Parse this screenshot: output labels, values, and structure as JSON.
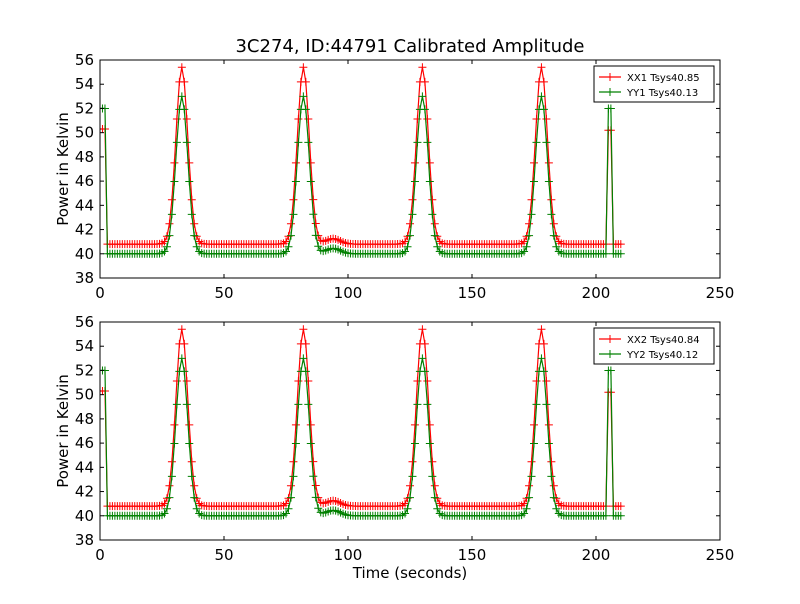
{
  "figure": {
    "title": "3C274, ID:44791 Calibrated Amplitude",
    "colors": {
      "xx": "#ff0000",
      "yy": "#008000",
      "axis": "#000000",
      "background": "#ffffff"
    }
  },
  "chart_data": [
    {
      "type": "line",
      "title": "3C274, ID:44791 Calibrated Amplitude",
      "xlabel": "",
      "ylabel": "Power in Kelvin",
      "xlim": [
        0,
        250
      ],
      "ylim": [
        38,
        56
      ],
      "xticks": [
        0,
        50,
        100,
        150,
        200,
        250
      ],
      "yticks": [
        38,
        40,
        42,
        44,
        46,
        48,
        50,
        52,
        54,
        56
      ],
      "grid": false,
      "legend_position": "top-right",
      "series": [
        {
          "name": "XX1 Tsys40.85",
          "color": "#ff0000",
          "marker": "+",
          "baseline": 40.8,
          "peaks": [
            33,
            82,
            130,
            178
          ],
          "peak_value": 55.4,
          "calibration": {
            "start": 0,
            "value": 50.3
          },
          "calibration_end": {
            "at": 205.5,
            "value": 50.2
          },
          "range": [
            0,
            210
          ],
          "final_value": 40.8
        },
        {
          "name": "YY1 Tsys40.13",
          "color": "#008000",
          "marker": "+",
          "baseline": 40.0,
          "peaks": [
            33,
            82,
            130,
            178
          ],
          "peak_value": 53.0,
          "calibration": {
            "start": 0,
            "value": 52.0
          },
          "calibration_end": {
            "at": 205.5,
            "value": 52.0
          },
          "range": [
            0,
            210
          ],
          "final_value": 40.0
        }
      ]
    },
    {
      "type": "line",
      "title": "",
      "xlabel": "Time (seconds)",
      "ylabel": "Power in Kelvin",
      "xlim": [
        0,
        250
      ],
      "ylim": [
        38,
        56
      ],
      "xticks": [
        0,
        50,
        100,
        150,
        200,
        250
      ],
      "yticks": [
        38,
        40,
        42,
        44,
        46,
        48,
        50,
        52,
        54,
        56
      ],
      "grid": false,
      "legend_position": "top-right",
      "series": [
        {
          "name": "XX2 Tsys40.84",
          "color": "#ff0000",
          "marker": "+",
          "baseline": 40.8,
          "peaks": [
            33,
            82,
            130,
            178
          ],
          "peak_value": 55.4,
          "calibration": {
            "start": 0,
            "value": 50.3
          },
          "calibration_end": {
            "at": 205.5,
            "value": 50.2
          },
          "range": [
            0,
            210
          ],
          "final_value": 40.8
        },
        {
          "name": "YY2 Tsys40.12",
          "color": "#008000",
          "marker": "+",
          "baseline": 40.0,
          "peaks": [
            33,
            82,
            130,
            178
          ],
          "peak_value": 53.0,
          "calibration": {
            "start": 0,
            "value": 52.0
          },
          "calibration_end": {
            "at": 205.5,
            "value": 52.0
          },
          "range": [
            0,
            210
          ],
          "final_value": 40.0
        }
      ]
    }
  ]
}
